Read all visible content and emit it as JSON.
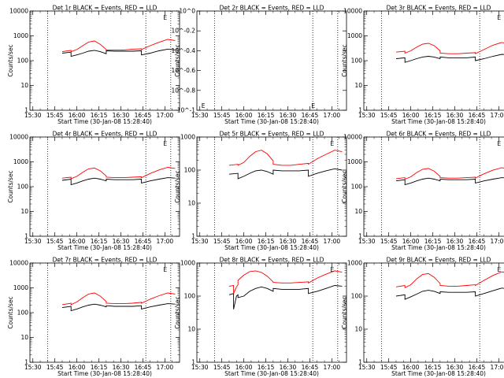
{
  "figure": {
    "xlabel": "Start Time (30-Jan-08 15:28:40)",
    "ylabel": "Counts/sec",
    "x_ticks": [
      "15:30",
      "15:45",
      "16:00",
      "16:15",
      "16:30",
      "16:45",
      "17:00"
    ],
    "colors": {
      "events": "#000000",
      "lld": "#ff0000",
      "axis": "#000000"
    }
  },
  "chart_data": [
    {
      "type": "line",
      "title": "Det 1r BLACK = Events, RED = LLD",
      "ylim": [
        1,
        10000
      ],
      "yscale": "log",
      "y_ticks": [
        "1",
        "10",
        "100",
        "1000",
        "10000"
      ],
      "markers": [
        {
          "label": "E",
          "x": "17:00",
          "pos": "top"
        }
      ],
      "series": [
        {
          "name": "Events",
          "color": "#000000",
          "x": [
            "15:50",
            "15:56",
            "15:56",
            "16:00",
            "16:04",
            "16:08",
            "16:12",
            "16:16",
            "16:20",
            "16:20",
            "16:26",
            "16:32",
            "16:38",
            "16:44",
            "16:44",
            "16:50",
            "16:56",
            "17:02",
            "17:07"
          ],
          "y": [
            200,
            220,
            150,
            170,
            200,
            240,
            260,
            230,
            190,
            250,
            240,
            240,
            240,
            250,
            170,
            200,
            250,
            290,
            270
          ]
        },
        {
          "name": "LLD",
          "color": "#ff0000",
          "x": [
            "15:50",
            "15:56",
            "15:56",
            "16:00",
            "16:04",
            "16:08",
            "16:12",
            "16:16",
            "16:20",
            "16:20",
            "16:26",
            "16:32",
            "16:38",
            "16:44",
            "16:44",
            "16:50",
            "16:56",
            "17:02",
            "17:07"
          ],
          "y": [
            230,
            260,
            230,
            280,
            400,
            560,
            620,
            450,
            280,
            270,
            270,
            270,
            290,
            300,
            280,
            400,
            550,
            720,
            650
          ]
        }
      ]
    },
    {
      "type": "line",
      "title": "Det 2r BLACK = Events, RED = LLD",
      "ylim": [
        -1,
        0
      ],
      "yscale": "log",
      "y_ticks": [
        "10^0",
        "10^-0.2",
        "10^-0.4",
        "10^-0.6",
        "10^-0.8",
        "10^-1"
      ],
      "markers": [
        {
          "label": "E",
          "x": "15:30",
          "pos": "bottom"
        },
        {
          "label": "E",
          "x": "16:45",
          "pos": "bottom"
        }
      ],
      "series": []
    },
    {
      "type": "line",
      "title": "Det 3r BLACK = Events, RED = LLD",
      "ylim": [
        1,
        10000
      ],
      "yscale": "log",
      "y_ticks": [
        "1",
        "10",
        "100",
        "1000",
        "10000"
      ],
      "markers": [
        {
          "label": "E",
          "x": "17:00",
          "pos": "top"
        }
      ],
      "series": [
        {
          "name": "Events",
          "color": "#000000",
          "x": [
            "15:50",
            "15:56",
            "15:56",
            "16:00",
            "16:04",
            "16:08",
            "16:12",
            "16:16",
            "16:20",
            "16:20",
            "16:26",
            "16:32",
            "16:38",
            "16:44",
            "16:44",
            "16:50",
            "16:56",
            "17:02",
            "17:07"
          ],
          "y": [
            120,
            130,
            85,
            100,
            120,
            140,
            150,
            140,
            120,
            140,
            130,
            130,
            130,
            140,
            100,
            120,
            150,
            180,
            170
          ]
        },
        {
          "name": "LLD",
          "color": "#ff0000",
          "x": [
            "15:50",
            "15:56",
            "15:56",
            "16:00",
            "16:04",
            "16:08",
            "16:12",
            "16:16",
            "16:20",
            "16:20",
            "16:26",
            "16:32",
            "16:38",
            "16:44",
            "16:44",
            "16:50",
            "16:56",
            "17:02",
            "17:07"
          ],
          "y": [
            220,
            240,
            200,
            250,
            350,
            460,
            500,
            400,
            250,
            200,
            190,
            190,
            200,
            210,
            190,
            280,
            420,
            540,
            480
          ]
        }
      ]
    },
    {
      "type": "line",
      "title": "Det 4r BLACK = Events, RED = LLD",
      "ylim": [
        1,
        10000
      ],
      "yscale": "log",
      "y_ticks": [
        "1",
        "10",
        "100",
        "1000",
        "10000"
      ],
      "markers": [
        {
          "label": "E",
          "x": "17:00",
          "pos": "top"
        }
      ],
      "series": [
        {
          "name": "Events",
          "color": "#000000",
          "x": [
            "15:50",
            "15:56",
            "15:56",
            "16:00",
            "16:04",
            "16:08",
            "16:12",
            "16:16",
            "16:20",
            "16:20",
            "16:26",
            "16:32",
            "16:38",
            "16:44",
            "16:44",
            "16:50",
            "16:56",
            "17:02",
            "17:07"
          ],
          "y": [
            180,
            200,
            120,
            140,
            170,
            200,
            220,
            200,
            170,
            200,
            190,
            190,
            190,
            200,
            140,
            170,
            200,
            230,
            220
          ]
        },
        {
          "name": "LLD",
          "color": "#ff0000",
          "x": [
            "15:50",
            "15:56",
            "15:56",
            "16:00",
            "16:04",
            "16:08",
            "16:12",
            "16:16",
            "16:20",
            "16:20",
            "16:26",
            "16:32",
            "16:38",
            "16:44",
            "16:44",
            "16:50",
            "16:56",
            "17:02",
            "17:07"
          ],
          "y": [
            220,
            240,
            210,
            260,
            380,
            520,
            560,
            430,
            270,
            240,
            230,
            230,
            240,
            250,
            230,
            340,
            470,
            600,
            540
          ]
        }
      ]
    },
    {
      "type": "line",
      "title": "Det 5r BLACK = Events, RED = LLD",
      "ylim": [
        1,
        1000
      ],
      "yscale": "log",
      "y_ticks": [
        "1",
        "10",
        "100",
        "1000"
      ],
      "markers": [
        {
          "label": "E",
          "x": "17:00",
          "pos": "top"
        }
      ],
      "series": [
        {
          "name": "Events",
          "color": "#000000",
          "x": [
            "15:50",
            "15:56",
            "15:56",
            "16:00",
            "16:04",
            "16:08",
            "16:12",
            "16:16",
            "16:20",
            "16:20",
            "16:26",
            "16:32",
            "16:38",
            "16:44",
            "16:44",
            "16:50",
            "16:56",
            "17:02",
            "17:07"
          ],
          "y": [
            75,
            80,
            55,
            65,
            80,
            95,
            100,
            90,
            75,
            100,
            95,
            95,
            95,
            100,
            65,
            80,
            95,
            110,
            100
          ]
        },
        {
          "name": "LLD",
          "color": "#ff0000",
          "x": [
            "15:50",
            "15:56",
            "15:56",
            "16:00",
            "16:04",
            "16:08",
            "16:12",
            "16:16",
            "16:20",
            "16:20",
            "16:26",
            "16:32",
            "16:38",
            "16:44",
            "16:44",
            "16:50",
            "16:56",
            "17:02",
            "17:07"
          ],
          "y": [
            140,
            150,
            140,
            170,
            260,
            360,
            400,
            310,
            190,
            150,
            140,
            140,
            150,
            160,
            150,
            220,
            300,
            400,
            360
          ]
        }
      ]
    },
    {
      "type": "line",
      "title": "Det 6r BLACK = Events, RED = LLD",
      "ylim": [
        1,
        10000
      ],
      "yscale": "log",
      "y_ticks": [
        "1",
        "10",
        "100",
        "1000",
        "10000"
      ],
      "markers": [
        {
          "label": "E",
          "x": "17:00",
          "pos": "top"
        }
      ],
      "series": [
        {
          "name": "Events",
          "color": "#000000",
          "x": [
            "15:50",
            "15:56",
            "15:56",
            "16:00",
            "16:04",
            "16:08",
            "16:12",
            "16:16",
            "16:20",
            "16:20",
            "16:26",
            "16:32",
            "16:38",
            "16:44",
            "16:44",
            "16:50",
            "16:56",
            "17:02",
            "17:07"
          ],
          "y": [
            170,
            190,
            120,
            140,
            170,
            200,
            220,
            200,
            170,
            200,
            190,
            190,
            190,
            200,
            140,
            170,
            200,
            230,
            220
          ]
        },
        {
          "name": "LLD",
          "color": "#ff0000",
          "x": [
            "15:50",
            "15:56",
            "15:56",
            "16:00",
            "16:04",
            "16:08",
            "16:12",
            "16:16",
            "16:20",
            "16:20",
            "16:26",
            "16:32",
            "16:38",
            "16:44",
            "16:44",
            "16:50",
            "16:56",
            "17:02",
            "17:07"
          ],
          "y": [
            210,
            230,
            200,
            250,
            370,
            500,
            540,
            420,
            260,
            230,
            220,
            220,
            230,
            240,
            220,
            330,
            460,
            580,
            520
          ]
        }
      ]
    },
    {
      "type": "line",
      "title": "Det 7r BLACK = Events, RED = LLD",
      "ylim": [
        1,
        10000
      ],
      "yscale": "log",
      "y_ticks": [
        "1",
        "10",
        "100",
        "1000",
        "10000"
      ],
      "markers": [
        {
          "label": "E",
          "x": "17:00",
          "pos": "top"
        }
      ],
      "series": [
        {
          "name": "Events",
          "color": "#000000",
          "x": [
            "15:50",
            "15:56",
            "15:56",
            "16:00",
            "16:04",
            "16:08",
            "16:12",
            "16:16",
            "16:20",
            "16:20",
            "16:26",
            "16:32",
            "16:38",
            "16:44",
            "16:44",
            "16:50",
            "16:56",
            "17:02",
            "17:07"
          ],
          "y": [
            160,
            180,
            120,
            140,
            170,
            200,
            220,
            200,
            170,
            190,
            180,
            180,
            180,
            190,
            140,
            170,
            200,
            230,
            220
          ]
        },
        {
          "name": "LLD",
          "color": "#ff0000",
          "x": [
            "15:50",
            "15:56",
            "15:56",
            "16:00",
            "16:04",
            "16:08",
            "16:12",
            "16:16",
            "16:20",
            "16:20",
            "16:26",
            "16:32",
            "16:38",
            "16:44",
            "16:44",
            "16:50",
            "16:56",
            "17:02",
            "17:07"
          ],
          "y": [
            210,
            240,
            210,
            270,
            400,
            560,
            620,
            460,
            280,
            240,
            230,
            230,
            240,
            260,
            240,
            350,
            480,
            620,
            560
          ]
        }
      ]
    },
    {
      "type": "line",
      "title": "Det 8r BLACK = Events, RED = LLD",
      "ylim": [
        1,
        1000
      ],
      "yscale": "log",
      "y_ticks": [
        "1",
        "10",
        "100",
        "1000"
      ],
      "markers": [
        {
          "label": "E",
          "x": "17:00",
          "pos": "top"
        }
      ],
      "series": [
        {
          "name": "Events",
          "color": "#000000",
          "x": [
            "15:50",
            "15:53",
            "15:53",
            "15:55",
            "15:56",
            "15:56",
            "16:00",
            "16:04",
            "16:08",
            "16:12",
            "16:16",
            "16:20",
            "16:20",
            "16:26",
            "16:32",
            "16:38",
            "16:44",
            "16:44",
            "16:50",
            "16:56",
            "17:02",
            "17:07"
          ],
          "y": [
            110,
            120,
            40,
            100,
            110,
            90,
            100,
            140,
            170,
            190,
            170,
            140,
            170,
            160,
            160,
            160,
            170,
            120,
            140,
            170,
            210,
            200
          ]
        },
        {
          "name": "LLD",
          "color": "#ff0000",
          "x": [
            "15:50",
            "15:53",
            "15:53",
            "15:55",
            "15:56",
            "15:56",
            "16:00",
            "16:04",
            "16:08",
            "16:12",
            "16:16",
            "16:20",
            "16:20",
            "16:26",
            "16:32",
            "16:38",
            "16:44",
            "16:44",
            "16:50",
            "16:56",
            "17:02",
            "17:07"
          ],
          "y": [
            200,
            210,
            120,
            190,
            220,
            300,
            430,
            550,
            580,
            520,
            400,
            270,
            260,
            250,
            250,
            260,
            270,
            250,
            350,
            460,
            580,
            530
          ]
        }
      ]
    },
    {
      "type": "line",
      "title": "Det 9r BLACK = Events, RED = LLD",
      "ylim": [
        1,
        1000
      ],
      "yscale": "log",
      "y_ticks": [
        "1",
        "10",
        "100",
        "1000"
      ],
      "markers": [
        {
          "label": "E",
          "x": "17:00",
          "pos": "top"
        }
      ],
      "series": [
        {
          "name": "Events",
          "color": "#000000",
          "x": [
            "15:50",
            "15:56",
            "15:56",
            "16:00",
            "16:04",
            "16:08",
            "16:12",
            "16:16",
            "16:20",
            "16:20",
            "16:26",
            "16:32",
            "16:38",
            "16:44",
            "16:44",
            "16:50",
            "16:56",
            "17:02",
            "17:07"
          ],
          "y": [
            100,
            110,
            80,
            95,
            115,
            140,
            150,
            140,
            120,
            135,
            130,
            130,
            130,
            135,
            100,
            120,
            145,
            175,
            165
          ]
        },
        {
          "name": "LLD",
          "color": "#ff0000",
          "x": [
            "15:50",
            "15:56",
            "15:56",
            "16:00",
            "16:04",
            "16:08",
            "16:12",
            "16:16",
            "16:20",
            "16:20",
            "16:26",
            "16:32",
            "16:38",
            "16:44",
            "16:44",
            "16:50",
            "16:56",
            "17:02",
            "17:07"
          ],
          "y": [
            190,
            210,
            180,
            220,
            330,
            450,
            480,
            370,
            240,
            210,
            200,
            200,
            210,
            220,
            210,
            300,
            420,
            540,
            490
          ]
        }
      ]
    }
  ]
}
